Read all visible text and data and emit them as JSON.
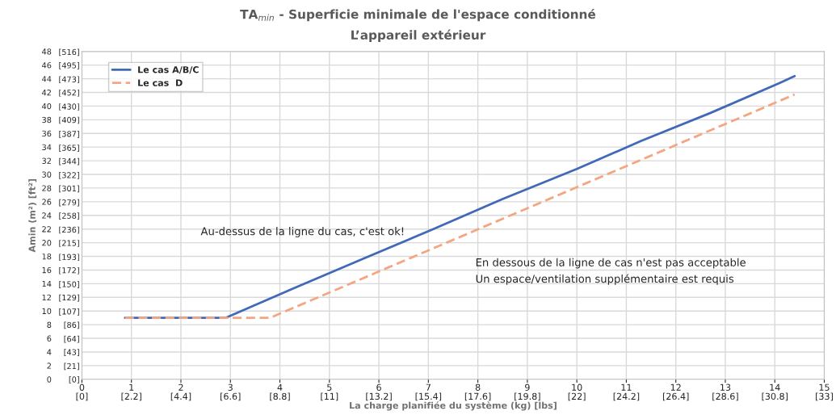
{
  "chart_data": {
    "type": "line",
    "title": "TA$_{min}$ - Superficie minimale de l'espace conditionné",
    "subtitle": "L’appareil extérieur",
    "xlabel": "La charge planifiée du système (kg) [lbs]",
    "ylabel": "Amin (m²) [ft²]",
    "series": [
      {
        "name": "Le cas A/B/C",
        "color": "#4169b8",
        "line_style": "solid",
        "x": [
          0.87,
          2.9,
          4.3,
          5.7,
          7.1,
          8.5,
          10.0,
          11.3,
          12.7,
          14.1,
          14.4
        ],
        "values": [
          9,
          9,
          13.4,
          17.7,
          22,
          26.4,
          30.8,
          34.9,
          39,
          43.4,
          44.4
        ]
      },
      {
        "name": "Le cas  D",
        "color": "#f4a582",
        "line_style": "dashed",
        "x": [
          0.87,
          3.8,
          14.4
        ],
        "values": [
          9,
          9,
          41.7
        ]
      }
    ],
    "xlim": [
      0,
      15
    ],
    "ylim": [
      0,
      48
    ],
    "xticks": [
      0,
      1,
      2,
      3,
      4,
      5,
      6,
      7,
      8,
      9,
      10,
      11,
      12,
      13,
      14,
      15
    ],
    "yticks": [
      0,
      2,
      4,
      6,
      8,
      10,
      12,
      14,
      16,
      18,
      20,
      22,
      24,
      26,
      28,
      30,
      32,
      34,
      36,
      38,
      40,
      42,
      44,
      46,
      48
    ],
    "x2lim": [
      0,
      33
    ],
    "x2ticks": [
      {
        "value": 0,
        "label": "[0]"
      },
      {
        "value": 2.2,
        "label": "[2.2]"
      },
      {
        "value": 4.4,
        "label": "[4.4]"
      },
      {
        "value": 6.6,
        "label": "[6.6]"
      },
      {
        "value": 8.8,
        "label": "[8.8]"
      },
      {
        "value": 11,
        "label": "[11]"
      },
      {
        "value": 13.2,
        "label": "[13.2]"
      },
      {
        "value": 15.4,
        "label": "[15.4]"
      },
      {
        "value": 17.6,
        "label": "[17.6]"
      },
      {
        "value": 19.8,
        "label": "[19.8]"
      },
      {
        "value": 22,
        "label": "[22]"
      },
      {
        "value": 24.2,
        "label": "[24.2]"
      },
      {
        "value": 26.4,
        "label": "[26.4]"
      },
      {
        "value": 28.6,
        "label": "[28.6]"
      },
      {
        "value": 30.8,
        "label": "[30.8]"
      },
      {
        "value": 33,
        "label": "[33]"
      }
    ],
    "y2lim": [
      0,
      516.7
    ],
    "y2ticks": [
      {
        "value": 0,
        "label": "[0]"
      },
      {
        "value": 21,
        "label": "[21]"
      },
      {
        "value": 43,
        "label": "[43]"
      },
      {
        "value": 64,
        "label": "[64]"
      },
      {
        "value": 86,
        "label": "[86]"
      },
      {
        "value": 107,
        "label": "[107]"
      },
      {
        "value": 129,
        "label": "[129]"
      },
      {
        "value": 150,
        "label": "[150]"
      },
      {
        "value": 172,
        "label": "[172]"
      },
      {
        "value": 193,
        "label": "[193]"
      },
      {
        "value": 215,
        "label": "[215]"
      },
      {
        "value": 236,
        "label": "[236]"
      },
      {
        "value": 258,
        "label": "[258]"
      },
      {
        "value": 279,
        "label": "[279]"
      },
      {
        "value": 301,
        "label": "[301]"
      },
      {
        "value": 322,
        "label": "[322]"
      },
      {
        "value": 344,
        "label": "[344]"
      },
      {
        "value": 365,
        "label": "[365]"
      },
      {
        "value": 387,
        "label": "[387]"
      },
      {
        "value": 409,
        "label": "[409]"
      },
      {
        "value": 430,
        "label": "[430]"
      },
      {
        "value": 452,
        "label": "[452]"
      },
      {
        "value": 473,
        "label": "[473]"
      },
      {
        "value": 495,
        "label": "[495]"
      },
      {
        "value": 516,
        "label": "[516]"
      }
    ],
    "annotations": [
      "Au-dessus de la ligne du cas, c'est ok!",
      "En dessous de la ligne de cas n'est pas acceptable",
      "Un espace/ventilation supplémentaire est requis"
    ],
    "grid": true,
    "legend": "top left",
    "marker": "none"
  }
}
